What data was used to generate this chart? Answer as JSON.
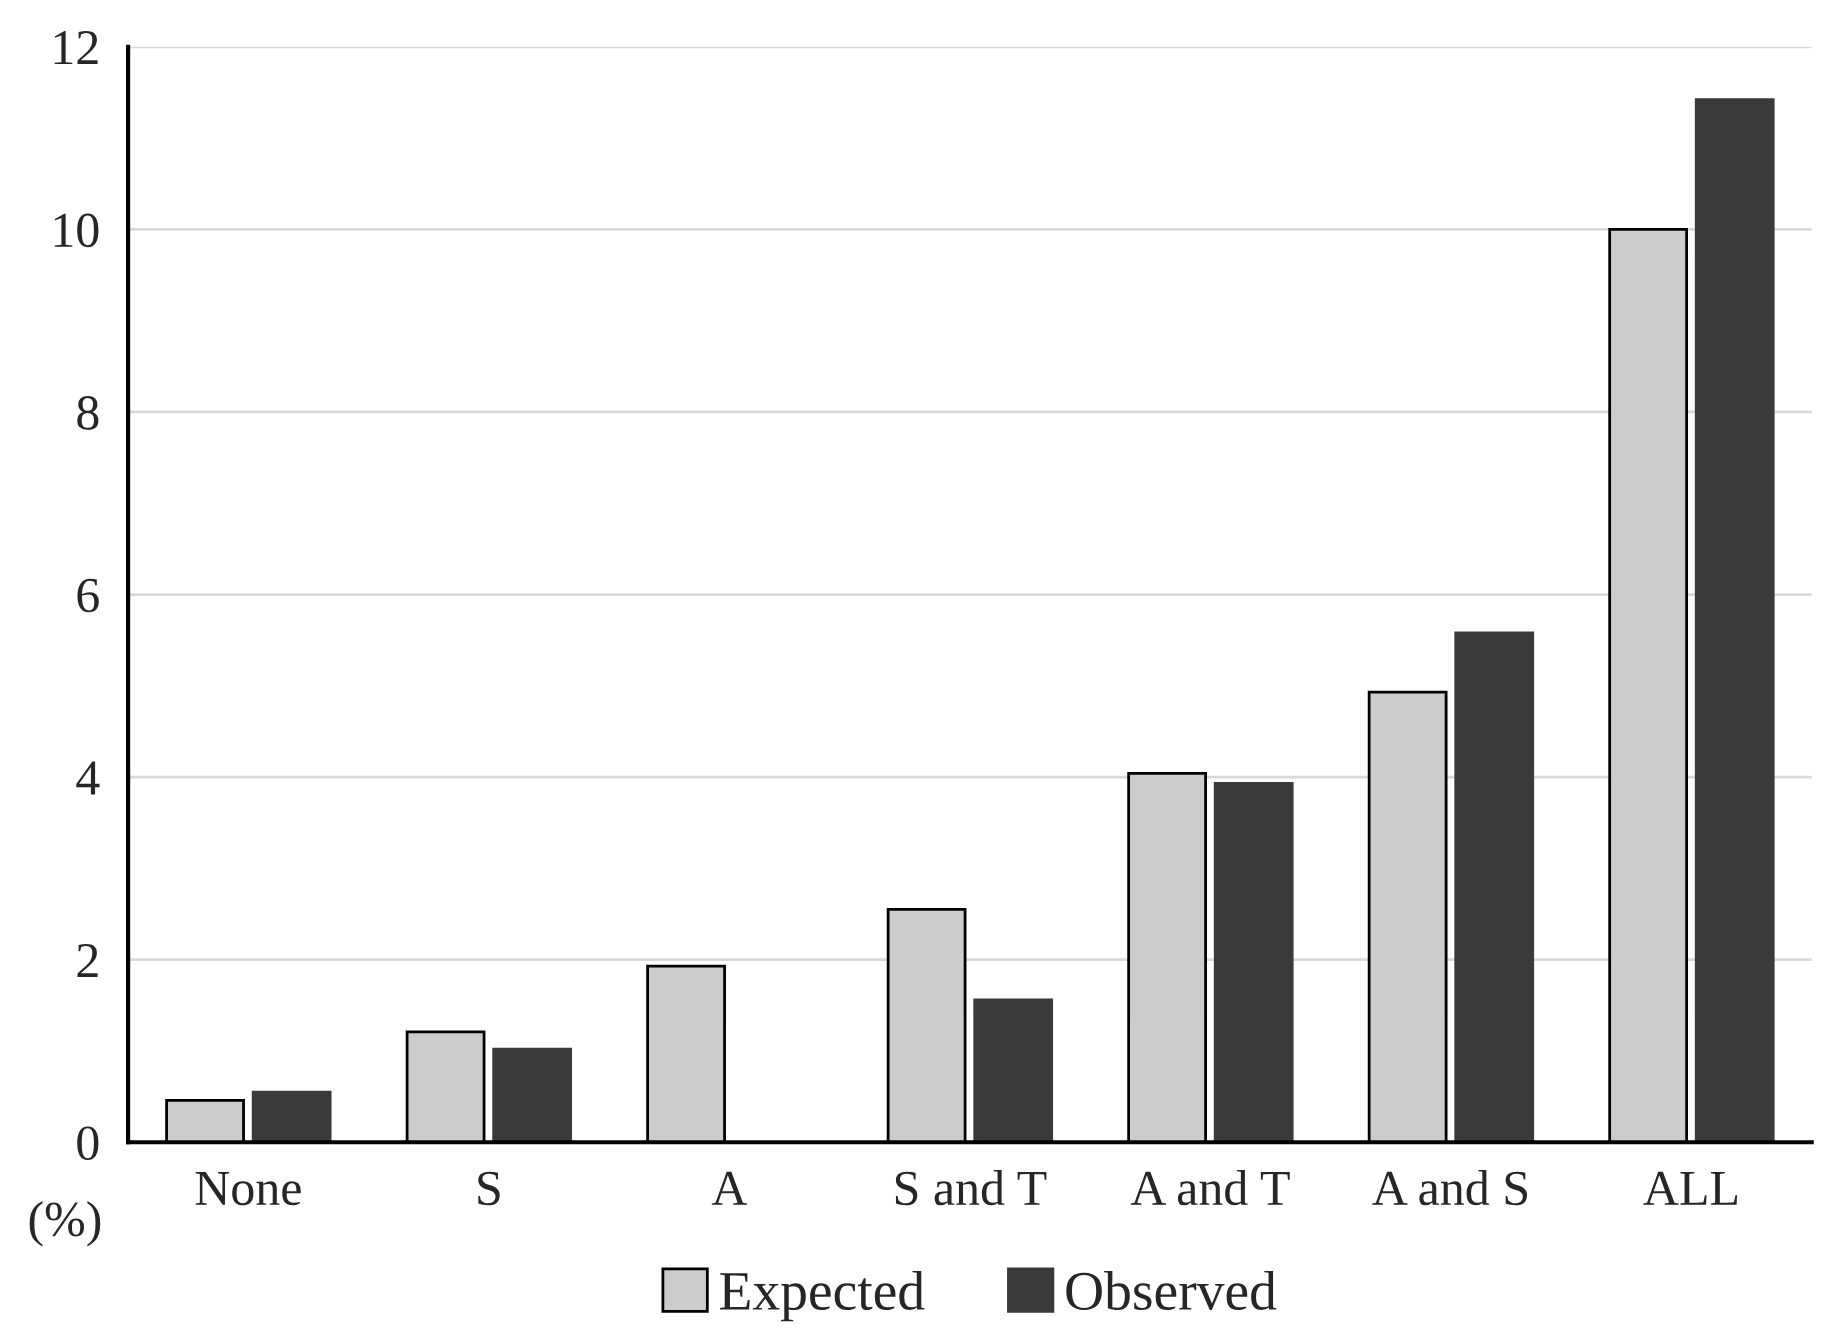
{
  "chart_data": {
    "type": "bar",
    "categories": [
      "None",
      "S",
      "A",
      "S and T",
      "A and T",
      "A and S",
      "ALL"
    ],
    "series": [
      {
        "name": "Expected",
        "color": "#cccccc",
        "values": [
          0.46,
          1.21,
          1.93,
          2.55,
          4.04,
          4.93,
          10.0
        ]
      },
      {
        "name": "Observed",
        "color": "#3a3a3a",
        "values": [
          0.55,
          1.02,
          0,
          1.56,
          3.93,
          5.58,
          11.42
        ]
      }
    ],
    "ylim": [
      0,
      12
    ],
    "yticks": [
      0,
      2,
      4,
      6,
      8,
      10,
      12
    ],
    "grid": "y",
    "legend": "bottom",
    "annotations": [
      "(%)"
    ]
  }
}
